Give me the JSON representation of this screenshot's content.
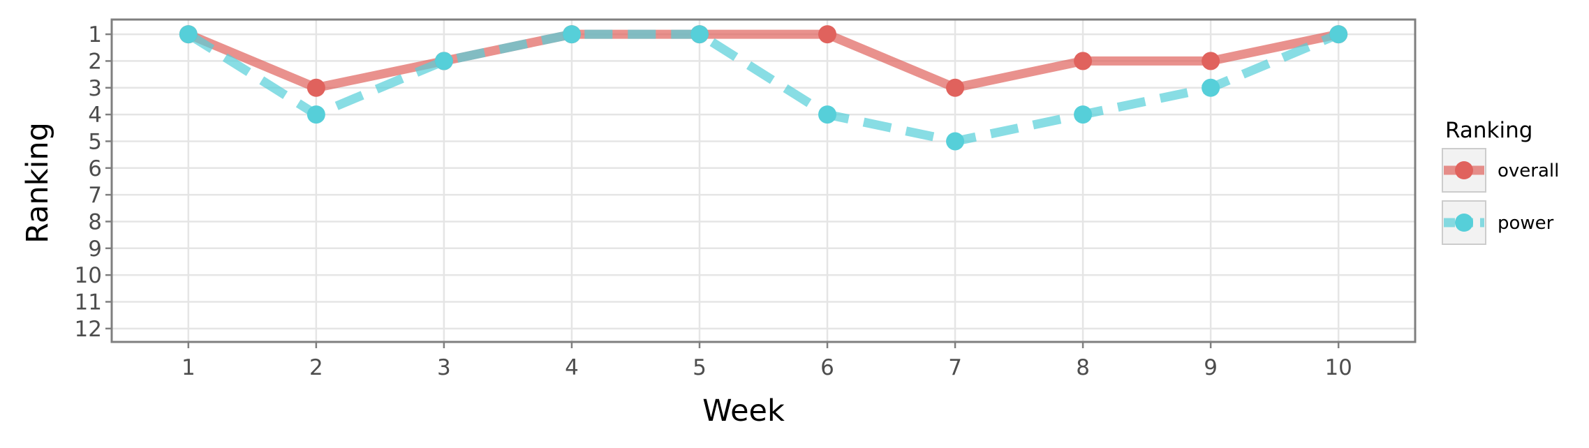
{
  "chart_data": {
    "type": "line",
    "xlabel": "Week",
    "ylabel": "Ranking",
    "x": [
      1,
      2,
      3,
      4,
      5,
      6,
      7,
      8,
      9,
      10
    ],
    "xticks": [
      "1",
      "2",
      "3",
      "4",
      "5",
      "6",
      "7",
      "8",
      "9",
      "10"
    ],
    "yticks": [
      "1",
      "2",
      "3",
      "4",
      "5",
      "6",
      "7",
      "8",
      "9",
      "10",
      "11",
      "12"
    ],
    "xlim": [
      0.4,
      10.6
    ],
    "ylim": [
      12.5,
      0.45
    ],
    "y_reversed": true,
    "grid": true,
    "legend": {
      "title": "Ranking",
      "position": "right"
    },
    "series": [
      {
        "name": "overall",
        "values": [
          1,
          3,
          2,
          1,
          1,
          1,
          3,
          2,
          2,
          1
        ],
        "color": "#e0625d",
        "line_style": "solid"
      },
      {
        "name": "power",
        "values": [
          1,
          4,
          2,
          1,
          1,
          4,
          5,
          4,
          3,
          1
        ],
        "color": "#56cfd9",
        "line_style": "dashed"
      }
    ]
  }
}
